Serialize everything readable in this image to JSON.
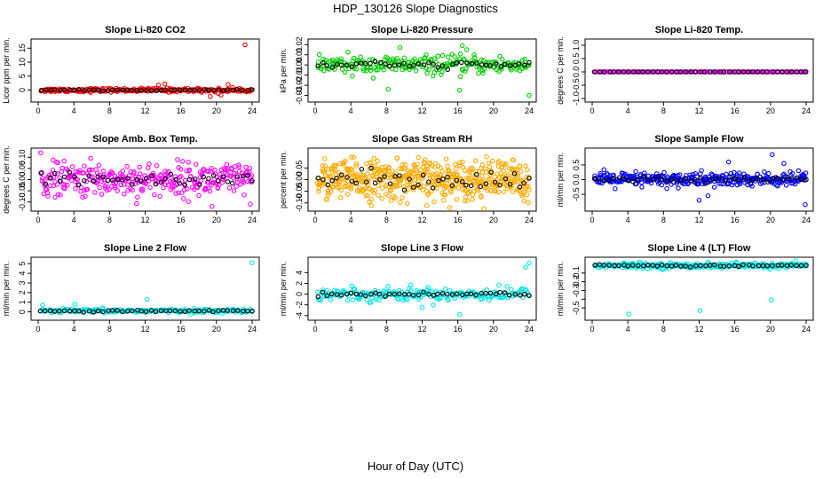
{
  "page": {
    "title": "HDP_130126  Slope Diagnostics",
    "xlabel": "Hour of Day (UTC)"
  },
  "chart_data": [
    {
      "type": "scatter",
      "title": "Slope Li-820 CO2",
      "ylabel": "Licor ppm per min.",
      "xlim": [
        0,
        24
      ],
      "xticks": [
        0,
        4,
        8,
        12,
        16,
        20,
        24
      ],
      "ylim": [
        -3,
        17
      ],
      "yticks": [
        0,
        5,
        10,
        15
      ],
      "yticklabels": [
        "0",
        "5",
        "10",
        "15"
      ],
      "center": 0,
      "spread": 0.7,
      "outliers": [
        [
          23.2,
          16.2
        ],
        [
          13.5,
          1.8
        ],
        [
          14.2,
          2.2
        ],
        [
          19.3,
          -2.3
        ],
        [
          20.5,
          -1.8
        ],
        [
          21.3,
          2.0
        ],
        [
          20.2,
          -1.2
        ]
      ],
      "series": [
        {
          "name": "all",
          "color": "#ff0000",
          "n": 220,
          "spread_scale": 1
        },
        {
          "name": "mean",
          "color": "#000000",
          "n": 45,
          "spread_scale": 0.25
        }
      ]
    },
    {
      "type": "scatter",
      "title": "Slope Li-820 Pressure",
      "ylabel": "kPa per min.",
      "xlim": [
        0,
        24
      ],
      "xticks": [
        0,
        4,
        8,
        12,
        16,
        20,
        24
      ],
      "ylim": [
        -0.033,
        0.022
      ],
      "yticks": [
        -0.03,
        -0.02,
        -0.01,
        0.0,
        0.01,
        0.02
      ],
      "yticklabels": [
        "-0.03",
        "-0.02",
        "-0.01",
        "0.00",
        "0.01",
        "0.02"
      ],
      "center": 0.0,
      "spread": 0.009,
      "outliers": [
        [
          8.2,
          -0.024
        ],
        [
          24.0,
          -0.03
        ],
        [
          16.2,
          -0.025
        ],
        [
          9.5,
          0.017
        ],
        [
          16.5,
          0.019
        ],
        [
          17.0,
          0.015
        ]
      ],
      "series": [
        {
          "name": "all",
          "color": "#00cc00",
          "n": 230,
          "spread_scale": 1
        },
        {
          "name": "mean",
          "color": "#000000",
          "n": 45,
          "spread_scale": 0.35
        }
      ]
    },
    {
      "type": "scatter",
      "title": "Slope Li-820 Temp.",
      "ylabel": "degrees C per min.",
      "xlim": [
        0,
        24
      ],
      "xticks": [
        0,
        4,
        8,
        12,
        16,
        20,
        24
      ],
      "ylim": [
        -1.0,
        1.1
      ],
      "yticks": [
        -1.0,
        -0.5,
        0.0,
        0.5,
        1.0
      ],
      "yticklabels": [
        "-1.0",
        "-0.5",
        "0.0",
        "0.5",
        "1.0"
      ],
      "center": 0.0,
      "spread": 0.0,
      "outliers": [],
      "series": [
        {
          "name": "all",
          "color": "#ff00ff",
          "n": 150,
          "spread_scale": 1
        },
        {
          "name": "mean",
          "color": "#000000",
          "n": 45,
          "spread_scale": 1
        }
      ]
    },
    {
      "type": "scatter",
      "title": "Slope Amb. Box Temp.",
      "ylabel": "degrees C per min.",
      "xlim": [
        0,
        24
      ],
      "xticks": [
        0,
        4,
        8,
        12,
        16,
        20,
        24
      ],
      "ylim": [
        -0.125,
        0.125
      ],
      "yticks": [
        -0.1,
        -0.05,
        0.0,
        0.05,
        0.1
      ],
      "yticklabels": [
        "-0.10",
        "-0.05",
        "0.00",
        "0.05",
        "0.10"
      ],
      "center": 0.0,
      "spread": 0.075,
      "outliers": [
        [
          0.3,
          0.12
        ],
        [
          19.5,
          -0.12
        ],
        [
          23.8,
          -0.11
        ]
      ],
      "series": [
        {
          "name": "all",
          "color": "#ff00ff",
          "n": 320,
          "spread_scale": 1
        },
        {
          "name": "mean",
          "color": "#000000",
          "n": 45,
          "spread_scale": 0.4
        }
      ]
    },
    {
      "type": "scatter",
      "title": "Slope Gas Stream RH",
      "ylabel": "percent per min.",
      "xlim": [
        0,
        24
      ],
      "xticks": [
        0,
        4,
        8,
        12,
        16,
        20,
        24
      ],
      "ylim": [
        -0.12,
        0.12
      ],
      "yticks": [
        -0.1,
        -0.05,
        0.0,
        0.05
      ],
      "yticklabels": [
        "-0.10",
        "-0.05",
        "0.00",
        "0.05"
      ],
      "center": 0.0,
      "spread": 0.085,
      "outliers": [],
      "series": [
        {
          "name": "all",
          "color": "#ffaa00",
          "n": 520,
          "spread_scale": 1
        },
        {
          "name": "mean",
          "color": "#000000",
          "n": 45,
          "spread_scale": 0.45
        }
      ]
    },
    {
      "type": "scatter",
      "title": "Slope Sample Flow",
      "ylabel": "ml/min per min.",
      "xlim": [
        0,
        24
      ],
      "xticks": [
        0,
        4,
        8,
        12,
        16,
        20,
        24
      ],
      "ylim": [
        -0.95,
        0.95
      ],
      "yticks": [
        -0.5,
        0.0,
        0.5
      ],
      "yticklabels": [
        "-0.5",
        "0.0",
        "0.5"
      ],
      "center": 0.0,
      "spread": 0.25,
      "outliers": [
        [
          20.2,
          0.85
        ],
        [
          23.9,
          -0.85
        ],
        [
          12.0,
          -0.7
        ],
        [
          15.3,
          0.6
        ],
        [
          13.0,
          -0.55
        ],
        [
          21.5,
          0.55
        ]
      ],
      "series": [
        {
          "name": "all",
          "color": "#0000ff",
          "n": 330,
          "spread_scale": 1
        },
        {
          "name": "mean",
          "color": "#000000",
          "n": 45,
          "spread_scale": 0.35
        }
      ]
    },
    {
      "type": "scatter",
      "title": "Slope Line 2 Flow",
      "ylabel": "ml/min per min.",
      "xlim": [
        0,
        24
      ],
      "xticks": [
        0,
        4,
        8,
        12,
        16,
        20,
        24
      ],
      "ylim": [
        -0.5,
        5.3
      ],
      "yticks": [
        0,
        1,
        2,
        3,
        4,
        5
      ],
      "yticklabels": [
        "0",
        "1",
        "2",
        "3",
        "4",
        "5"
      ],
      "center": 0.1,
      "spread": 0.2,
      "outliers": [
        [
          24.0,
          5.1
        ],
        [
          12.2,
          1.3
        ],
        [
          4.1,
          0.8
        ],
        [
          0.5,
          0.7
        ]
      ],
      "series": [
        {
          "name": "all",
          "color": "#00e5e5",
          "n": 200,
          "spread_scale": 1
        },
        {
          "name": "mean",
          "color": "#000000",
          "n": 45,
          "spread_scale": 0.5
        }
      ]
    },
    {
      "type": "scatter",
      "title": "Slope Line 3 Flow",
      "ylabel": "ml/min per min.",
      "xlim": [
        0,
        24
      ],
      "xticks": [
        0,
        4,
        8,
        12,
        16,
        20,
        24
      ],
      "ylim": [
        -4.2,
        6.2
      ],
      "yticks": [
        -4,
        -2,
        0,
        2,
        4
      ],
      "yticklabels": [
        "-4",
        "-2",
        "0",
        "2",
        "4"
      ],
      "center": 0.0,
      "spread": 1.2,
      "outliers": [
        [
          24.0,
          5.8
        ],
        [
          23.6,
          5.0
        ],
        [
          16.2,
          -3.8
        ],
        [
          12.0,
          -2.5
        ]
      ],
      "series": [
        {
          "name": "all",
          "color": "#00e5e5",
          "n": 220,
          "spread_scale": 1
        },
        {
          "name": "mean",
          "color": "#000000",
          "n": 45,
          "spread_scale": 0.35
        }
      ]
    },
    {
      "type": "scatter",
      "title": "Slope Line 4 (LT) Flow",
      "ylabel": "ml/min per min.",
      "xlim": [
        0,
        24
      ],
      "xticks": [
        0,
        4,
        8,
        12,
        16,
        20,
        24
      ],
      "ylim": [
        -0.6,
        0.04
      ],
      "yticks": [
        -0.5,
        -0.4,
        -0.3,
        -0.2,
        -0.1
      ],
      "yticklabels": [
        "-0.5",
        "",
        "-0.3",
        "-0.2",
        "-0.1"
      ],
      "center": -0.015,
      "spread": 0.03,
      "outliers": [
        [
          4.1,
          -0.57
        ],
        [
          12.1,
          -0.53
        ],
        [
          20.1,
          -0.41
        ]
      ],
      "series": [
        {
          "name": "all",
          "color": "#00e5e5",
          "n": 280,
          "spread_scale": 1
        },
        {
          "name": "mean",
          "color": "#000000",
          "n": 45,
          "spread_scale": 0.4
        }
      ]
    }
  ]
}
